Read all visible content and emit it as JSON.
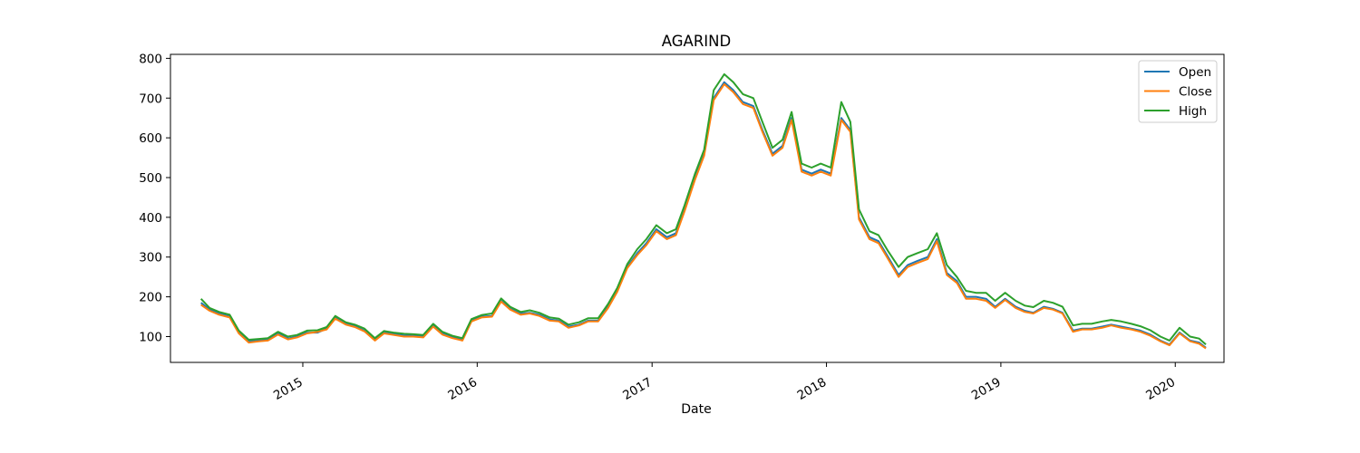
{
  "chart_data": {
    "type": "line",
    "title": "AGARIND",
    "xlabel": "Date",
    "ylabel": "",
    "x_ticks": [
      "2015",
      "2016",
      "2017",
      "2018",
      "2019",
      "2020"
    ],
    "y_ticks": [
      100,
      200,
      300,
      400,
      500,
      600,
      700,
      800
    ],
    "xlim": [
      "2014-03-30",
      "2020-04-12"
    ],
    "ylim": [
      35,
      810
    ],
    "grid": false,
    "legend_position": "top-right",
    "x": [
      "2014-06-02",
      "2014-06-20",
      "2014-07-10",
      "2014-08-01",
      "2014-08-20",
      "2014-09-10",
      "2014-10-01",
      "2014-10-20",
      "2014-11-10",
      "2014-12-01",
      "2014-12-20",
      "2015-01-10",
      "2015-02-01",
      "2015-02-20",
      "2015-03-10",
      "2015-04-01",
      "2015-04-20",
      "2015-05-10",
      "2015-06-01",
      "2015-06-20",
      "2015-07-10",
      "2015-08-01",
      "2015-08-20",
      "2015-09-10",
      "2015-10-01",
      "2015-10-20",
      "2015-11-10",
      "2015-12-01",
      "2015-12-20",
      "2016-01-10",
      "2016-02-01",
      "2016-02-20",
      "2016-03-10",
      "2016-04-01",
      "2016-04-20",
      "2016-05-10",
      "2016-06-01",
      "2016-06-20",
      "2016-07-10",
      "2016-08-01",
      "2016-08-20",
      "2016-09-10",
      "2016-10-01",
      "2016-10-20",
      "2016-11-10",
      "2016-12-01",
      "2016-12-20",
      "2017-01-10",
      "2017-02-01",
      "2017-02-20",
      "2017-03-10",
      "2017-04-01",
      "2017-04-20",
      "2017-05-10",
      "2017-06-01",
      "2017-06-20",
      "2017-07-10",
      "2017-08-01",
      "2017-08-20",
      "2017-09-10",
      "2017-10-01",
      "2017-10-20",
      "2017-11-10",
      "2017-12-01",
      "2017-12-20",
      "2018-01-10",
      "2018-02-01",
      "2018-02-20",
      "2018-03-10",
      "2018-04-01",
      "2018-04-20",
      "2018-05-10",
      "2018-06-01",
      "2018-06-20",
      "2018-07-10",
      "2018-08-01",
      "2018-08-20",
      "2018-09-10",
      "2018-10-01",
      "2018-10-20",
      "2018-11-10",
      "2018-12-01",
      "2018-12-20",
      "2019-01-10",
      "2019-02-01",
      "2019-02-20",
      "2019-03-10",
      "2019-04-01",
      "2019-04-20",
      "2019-05-10",
      "2019-06-01",
      "2019-06-20",
      "2019-07-10",
      "2019-08-01",
      "2019-08-20",
      "2019-09-10",
      "2019-10-01",
      "2019-10-20",
      "2019-11-10",
      "2019-12-01",
      "2019-12-20",
      "2020-01-10",
      "2020-02-01",
      "2020-02-20",
      "2020-03-05"
    ],
    "series": [
      {
        "name": "Open",
        "color": "#1f77b4",
        "values": [
          185,
          168,
          158,
          150,
          110,
          88,
          90,
          92,
          108,
          95,
          100,
          110,
          110,
          120,
          148,
          132,
          126,
          115,
          92,
          110,
          106,
          103,
          102,
          100,
          128,
          108,
          98,
          92,
          140,
          150,
          152,
          190,
          170,
          158,
          160,
          155,
          143,
          140,
          125,
          130,
          140,
          140,
          175,
          215,
          275,
          310,
          335,
          370,
          350,
          360,
          420,
          500,
          560,
          700,
          740,
          720,
          690,
          680,
          620,
          560,
          580,
          650,
          520,
          510,
          520,
          510,
          650,
          620,
          400,
          350,
          340,
          300,
          255,
          280,
          290,
          300,
          345,
          260,
          240,
          200,
          200,
          195,
          175,
          195,
          175,
          165,
          160,
          175,
          170,
          160,
          115,
          120,
          120,
          125,
          130,
          125,
          120,
          115,
          105,
          90,
          80,
          110,
          90,
          85,
          72
        ]
      },
      {
        "name": "Close",
        "color": "#ff7f0e",
        "values": [
          180,
          165,
          155,
          148,
          108,
          85,
          88,
          90,
          105,
          93,
          98,
          108,
          112,
          118,
          145,
          130,
          124,
          113,
          90,
          108,
          104,
          100,
          100,
          98,
          125,
          105,
          96,
          90,
          138,
          148,
          150,
          188,
          168,
          155,
          158,
          152,
          140,
          138,
          122,
          128,
          138,
          138,
          172,
          212,
          272,
          305,
          330,
          365,
          345,
          355,
          415,
          495,
          555,
          695,
          735,
          715,
          685,
          675,
          615,
          555,
          575,
          645,
          515,
          505,
          515,
          505,
          645,
          615,
          395,
          345,
          335,
          295,
          250,
          275,
          285,
          295,
          340,
          255,
          235,
          195,
          195,
          190,
          172,
          192,
          172,
          162,
          158,
          172,
          168,
          158,
          112,
          118,
          118,
          122,
          128,
          122,
          118,
          112,
          102,
          88,
          78,
          108,
          88,
          82,
          70
        ]
      },
      {
        "name": "High",
        "color": "#2ca02c",
        "values": [
          195,
          172,
          162,
          155,
          115,
          92,
          94,
          96,
          112,
          100,
          104,
          115,
          116,
          124,
          152,
          136,
          130,
          120,
          96,
          114,
          110,
          107,
          106,
          104,
          132,
          112,
          102,
          96,
          144,
          154,
          158,
          196,
          175,
          162,
          166,
          160,
          148,
          145,
          130,
          136,
          146,
          146,
          182,
          222,
          282,
          320,
          345,
          380,
          360,
          370,
          430,
          510,
          570,
          720,
          760,
          740,
          710,
          700,
          640,
          575,
          595,
          665,
          535,
          525,
          535,
          525,
          690,
          640,
          420,
          365,
          355,
          315,
          275,
          300,
          310,
          320,
          360,
          280,
          250,
          215,
          210,
          210,
          190,
          210,
          190,
          178,
          174,
          190,
          185,
          175,
          128,
          132,
          132,
          138,
          142,
          138,
          132,
          126,
          116,
          100,
          90,
          122,
          100,
          95,
          80
        ]
      }
    ]
  }
}
